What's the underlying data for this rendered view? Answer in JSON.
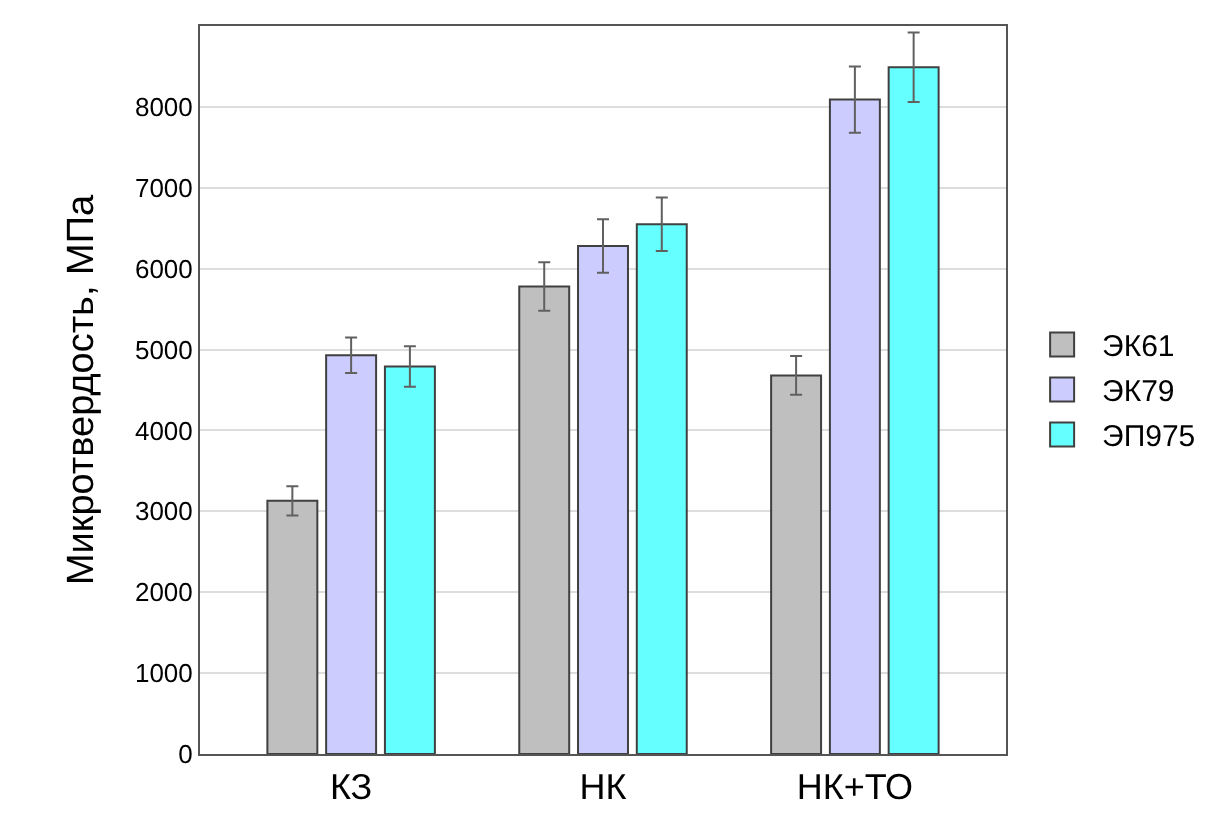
{
  "chart_data": {
    "type": "bar",
    "ylabel": "Микротвердость, МПа",
    "categories": [
      "КЗ",
      "НК",
      "НК+ТО"
    ],
    "series": [
      {
        "name": "ЭК61",
        "color": "#bfbfbf",
        "values": [
          3130,
          5780,
          4680
        ],
        "errors": [
          180,
          300,
          240
        ]
      },
      {
        "name": "ЭК79",
        "color": "#ccccff",
        "values": [
          4930,
          6280,
          8090
        ],
        "errors": [
          220,
          330,
          410
        ]
      },
      {
        "name": "ЭП975",
        "color": "#66ffff",
        "values": [
          4790,
          6550,
          8490
        ],
        "errors": [
          250,
          330,
          430
        ]
      }
    ],
    "ylim": [
      0,
      9000
    ],
    "yticks": [
      0,
      1000,
      2000,
      3000,
      4000,
      5000,
      6000,
      7000,
      8000
    ],
    "grid": "y",
    "legend": "right"
  }
}
